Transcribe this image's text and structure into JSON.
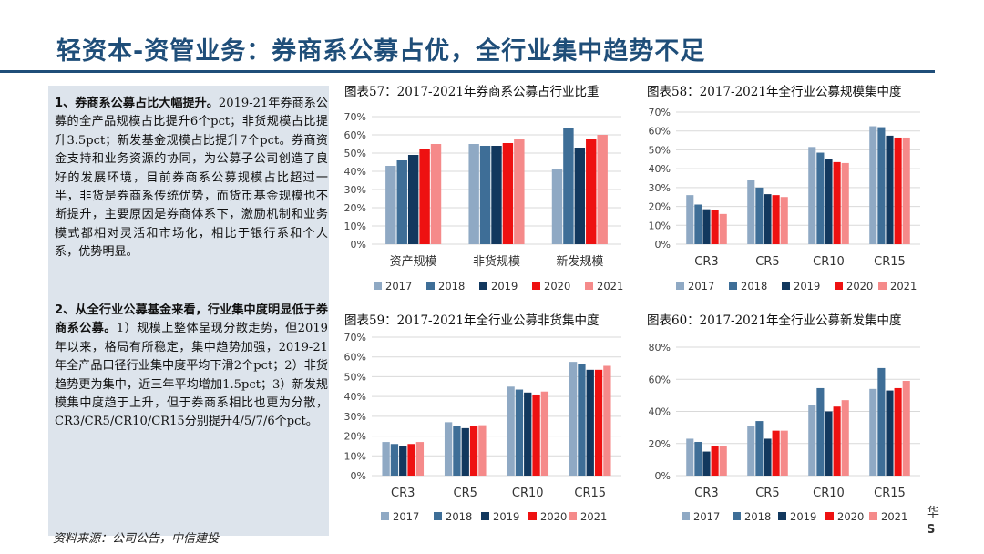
{
  "slide": {
    "title": "轻资本-资管业务：券商系公募占优，全行业集中趋势不足",
    "source": "资料来源：公司公告，中信建投",
    "corner_glyph": "华",
    "corner_s": "S"
  },
  "textbox": {
    "p1_bold": "1、券商系公募占比大幅提升。",
    "p1_text": "2019-21年券商系公募的全产品规模占比提升6个pct；非货规模占比提升3.5pct；新发基金规模占比提升7个pct。券商资金支持和业务资源的协同，为公募子公司创造了良好的发展环境，目前券商系公募规模占比超过一半，非货是券商系传统优势，而货币基金规模也不断提升，主要原因是券商体系下，激励机制和业务模式都相对灵活和市场化，相比于银行系和个人系，优势明显。",
    "p2_bold": "2、从全行业公募基金来看，行业集中度明显低于券商系公募。",
    "p2_text": "1）规模上整体呈现分散走势，但2019年以来，格局有所稳定，集中趋势加强，2019-21年全产品口径行业集中度平均下滑2个pct；2）非货趋势更为集中，近三年平均增加1.5pct；3）新发规模集中度趋于上升，但于券商系相比也更为分散，CR3/CR5/CR10/CR15分别提升4/5/7/6个pct。"
  },
  "colors": {
    "2017": "#8fa9c4",
    "2018": "#3e6e97",
    "2019": "#12385e",
    "2020": "#ee1111",
    "2021": "#f58a8a"
  },
  "chart_data": [
    {
      "id": "c57",
      "type": "bar",
      "title": "图表57：2017-2021年券商系公募占行业比重",
      "categories": [
        "资产规模",
        "非货规模",
        "新发规模"
      ],
      "series": [
        {
          "name": "2017",
          "values": [
            43,
            55,
            41
          ]
        },
        {
          "name": "2018",
          "values": [
            46,
            54,
            63.5
          ]
        },
        {
          "name": "2019",
          "values": [
            49,
            54,
            53
          ]
        },
        {
          "name": "2020",
          "values": [
            52,
            55.5,
            58
          ]
        },
        {
          "name": "2021",
          "values": [
            55,
            57.5,
            60
          ]
        }
      ],
      "ylim": [
        0,
        70
      ],
      "ytick_step": 10,
      "ytick_suffix": "%",
      "legend": [
        "2017",
        "2018",
        "2019",
        "2020",
        "2021"
      ]
    },
    {
      "id": "c58",
      "type": "bar",
      "title": "图表58：2017-2021年全行业公募规模集中度",
      "categories": [
        "CR3",
        "CR5",
        "CR10",
        "CR15"
      ],
      "series": [
        {
          "name": "2017",
          "values": [
            26,
            34,
            51.5,
            62.5
          ]
        },
        {
          "name": "2018",
          "values": [
            21,
            30,
            48.5,
            62
          ]
        },
        {
          "name": "2019",
          "values": [
            18.5,
            26.5,
            45,
            57.5
          ]
        },
        {
          "name": "2020",
          "values": [
            18,
            26,
            43.5,
            56.5
          ]
        },
        {
          "name": "2021",
          "values": [
            16,
            25,
            43,
            56.5
          ]
        }
      ],
      "ylim": [
        0,
        70
      ],
      "ytick_step": 10,
      "ytick_suffix": "%",
      "legend": [
        "2017",
        "2018",
        "2019",
        "2020",
        "2021"
      ]
    },
    {
      "id": "c59",
      "type": "bar",
      "title": "图表59：2017-2021年全行业公募非货集中度",
      "categories": [
        "CR3",
        "CR5",
        "CR10",
        "CR15"
      ],
      "series": [
        {
          "name": "2017",
          "values": [
            17,
            27,
            45,
            57.5
          ]
        },
        {
          "name": "2018",
          "values": [
            16,
            25,
            43.5,
            56.5
          ]
        },
        {
          "name": "2019",
          "values": [
            15,
            24,
            42,
            53.5
          ]
        },
        {
          "name": "2020",
          "values": [
            16,
            25,
            41,
            53.5
          ]
        },
        {
          "name": "2021",
          "values": [
            17,
            25.5,
            42.5,
            55.5
          ]
        }
      ],
      "ylim": [
        0,
        70
      ],
      "ytick_step": 10,
      "ytick_suffix": "%",
      "legend": [
        "2017",
        "2018",
        "2019",
        "2020",
        "2021"
      ]
    },
    {
      "id": "c60",
      "type": "bar",
      "title": "图表60：2017-2021年全行业公募新发集中度",
      "categories": [
        "CR3",
        "CR5",
        "CR10",
        "CR15"
      ],
      "series": [
        {
          "name": "2017",
          "values": [
            23,
            31,
            44,
            54
          ]
        },
        {
          "name": "2018",
          "values": [
            21,
            34,
            54.5,
            67
          ]
        },
        {
          "name": "2019",
          "values": [
            15,
            23,
            40,
            53
          ]
        },
        {
          "name": "2020",
          "values": [
            18.5,
            28,
            43,
            54.5
          ]
        },
        {
          "name": "2021",
          "values": [
            18.5,
            28,
            47,
            59
          ]
        }
      ],
      "ylim": [
        0,
        80
      ],
      "ytick_step": 20,
      "ytick_suffix": "%",
      "legend": [
        "2017",
        "2018",
        "2019",
        "2020",
        "2021"
      ]
    }
  ]
}
